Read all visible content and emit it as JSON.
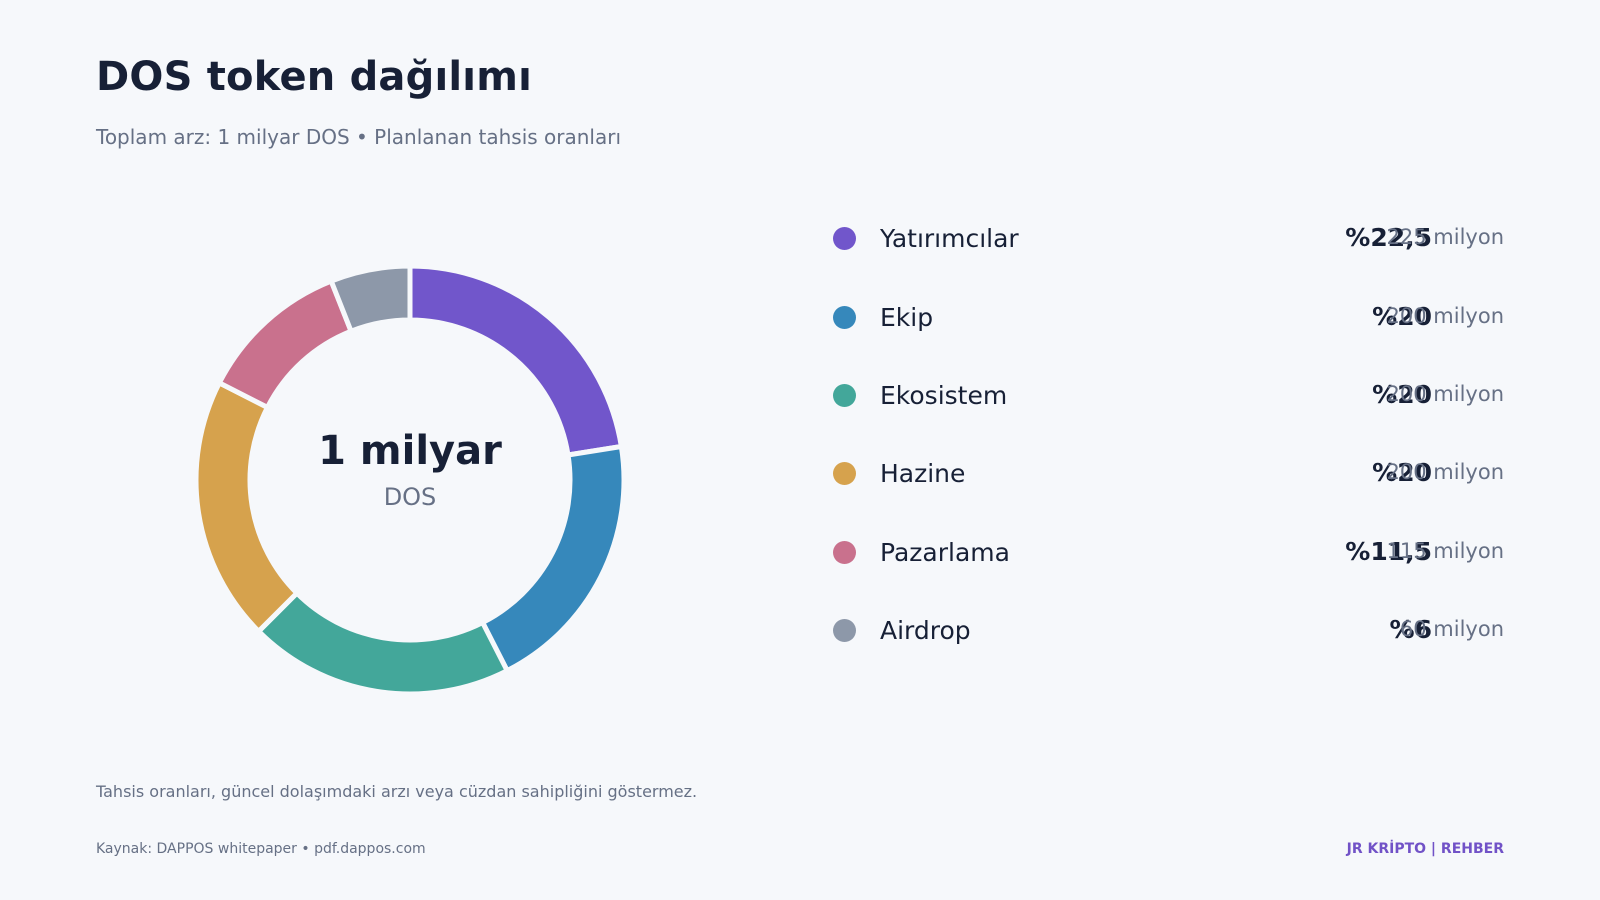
{
  "header": {
    "title": "DOS token dağılımı",
    "subtitle": "Toplam arz: 1 milyar DOS • Planlanan tahsis oranları"
  },
  "center": {
    "value": "1 milyar",
    "unit": "DOS"
  },
  "legend": [
    {
      "label": "Yatırımcılar",
      "percent_text": "%22,5",
      "amount_text": "225 milyon"
    },
    {
      "label": "Ekip",
      "percent_text": "%20",
      "amount_text": "200 milyon"
    },
    {
      "label": "Ekosistem",
      "percent_text": "%20",
      "amount_text": "200 milyon"
    },
    {
      "label": "Hazine",
      "percent_text": "%20",
      "amount_text": "200 milyon"
    },
    {
      "label": "Pazarlama",
      "percent_text": "%11,5",
      "amount_text": "115 milyon"
    },
    {
      "label": "Airdrop",
      "percent_text": "%6",
      "amount_text": "60 milyon"
    }
  ],
  "chart_data": {
    "type": "pie",
    "categories": [
      "Yatırımcılar",
      "Ekip",
      "Ekosistem",
      "Hazine",
      "Pazarlama",
      "Airdrop"
    ],
    "values": [
      22.5,
      20,
      20,
      20,
      11.5,
      6
    ],
    "colors": [
      "#7156cb",
      "#3688bb",
      "#43a79a",
      "#d6a24d",
      "#c9718d",
      "#8d98a9"
    ],
    "legend": "right"
  },
  "footer": {
    "note": "Tahsis oranları, güncel dolaşımdaki arzı veya cüzdan sahipliğini göstermez.",
    "source": "Kaynak: DAPPOS whitepaper • pdf.dappos.com",
    "brand": "JR KRİPTO | REHBER"
  }
}
